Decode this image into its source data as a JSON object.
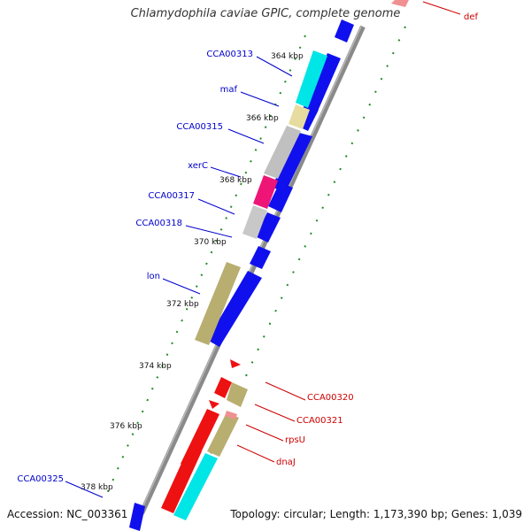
{
  "title": "Chlamydophila caviae GPIC, complete genome",
  "footer": {
    "accession": "Accession: NC_003361",
    "summary": "Topology: circular; Length: 1,173,390 bp; Genes: 1,039"
  },
  "colors": {
    "backbone": "#808080",
    "forward_label": "#0000cc",
    "reverse_label": "#cc0000",
    "tick": "#228b22"
  },
  "kbp_ticks": [
    "364 kbp",
    "366 kbp",
    "368 kbp",
    "370 kbp",
    "372 kbp",
    "374 kbp",
    "376 kbp",
    "378 kbp"
  ],
  "forward_genes": [
    {
      "label": "CCA00313"
    },
    {
      "label": "maf"
    },
    {
      "label": "CCA00315"
    },
    {
      "label": "xerC"
    },
    {
      "label": "CCA00317"
    },
    {
      "label": "CCA00318"
    },
    {
      "label": "lon"
    },
    {
      "label": "CCA00325"
    }
  ],
  "reverse_genes": [
    {
      "label": "def"
    },
    {
      "label": "CCA00320"
    },
    {
      "label": "CCA00321"
    },
    {
      "label": "rpsU"
    },
    {
      "label": "dnaJ"
    }
  ]
}
